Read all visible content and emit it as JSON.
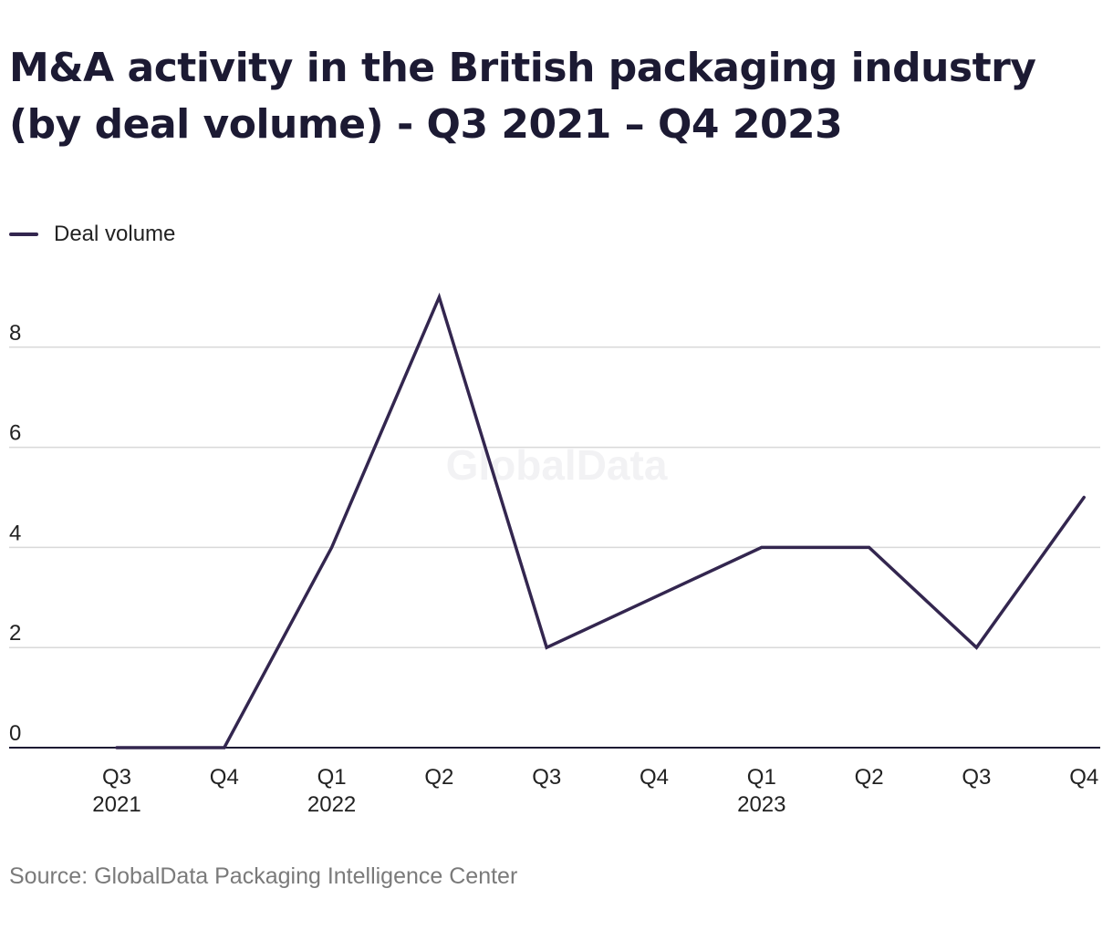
{
  "chart_data": {
    "type": "line",
    "title": "M&A activity in the British packaging industry (by deal volume) - Q3 2021 – Q4 2023",
    "xlabel": "",
    "ylabel": "",
    "categories": [
      "Q3 2021",
      "Q4",
      "Q1 2022",
      "Q2",
      "Q3",
      "Q4",
      "Q1 2023",
      "Q2",
      "Q3",
      "Q4"
    ],
    "x_tick_labels": [
      {
        "quarter": "Q3",
        "year": "2021"
      },
      {
        "quarter": "Q4",
        "year": ""
      },
      {
        "quarter": "Q1",
        "year": "2022"
      },
      {
        "quarter": "Q2",
        "year": ""
      },
      {
        "quarter": "Q3",
        "year": ""
      },
      {
        "quarter": "Q4",
        "year": ""
      },
      {
        "quarter": "Q1",
        "year": "2023"
      },
      {
        "quarter": "Q2",
        "year": ""
      },
      {
        "quarter": "Q3",
        "year": ""
      },
      {
        "quarter": "Q4",
        "year": ""
      }
    ],
    "series": [
      {
        "name": "Deal volume",
        "color": "#33264f",
        "values": [
          0,
          0,
          4,
          9,
          2,
          3,
          4,
          4,
          2,
          5
        ]
      }
    ],
    "ylim": [
      0,
      9
    ],
    "yticks": [
      0,
      2,
      4,
      6,
      8
    ],
    "grid": true,
    "legend_position": "top-left",
    "watermark": "GlobalData",
    "source": "Source: GlobalData Packaging Intelligence Center"
  }
}
